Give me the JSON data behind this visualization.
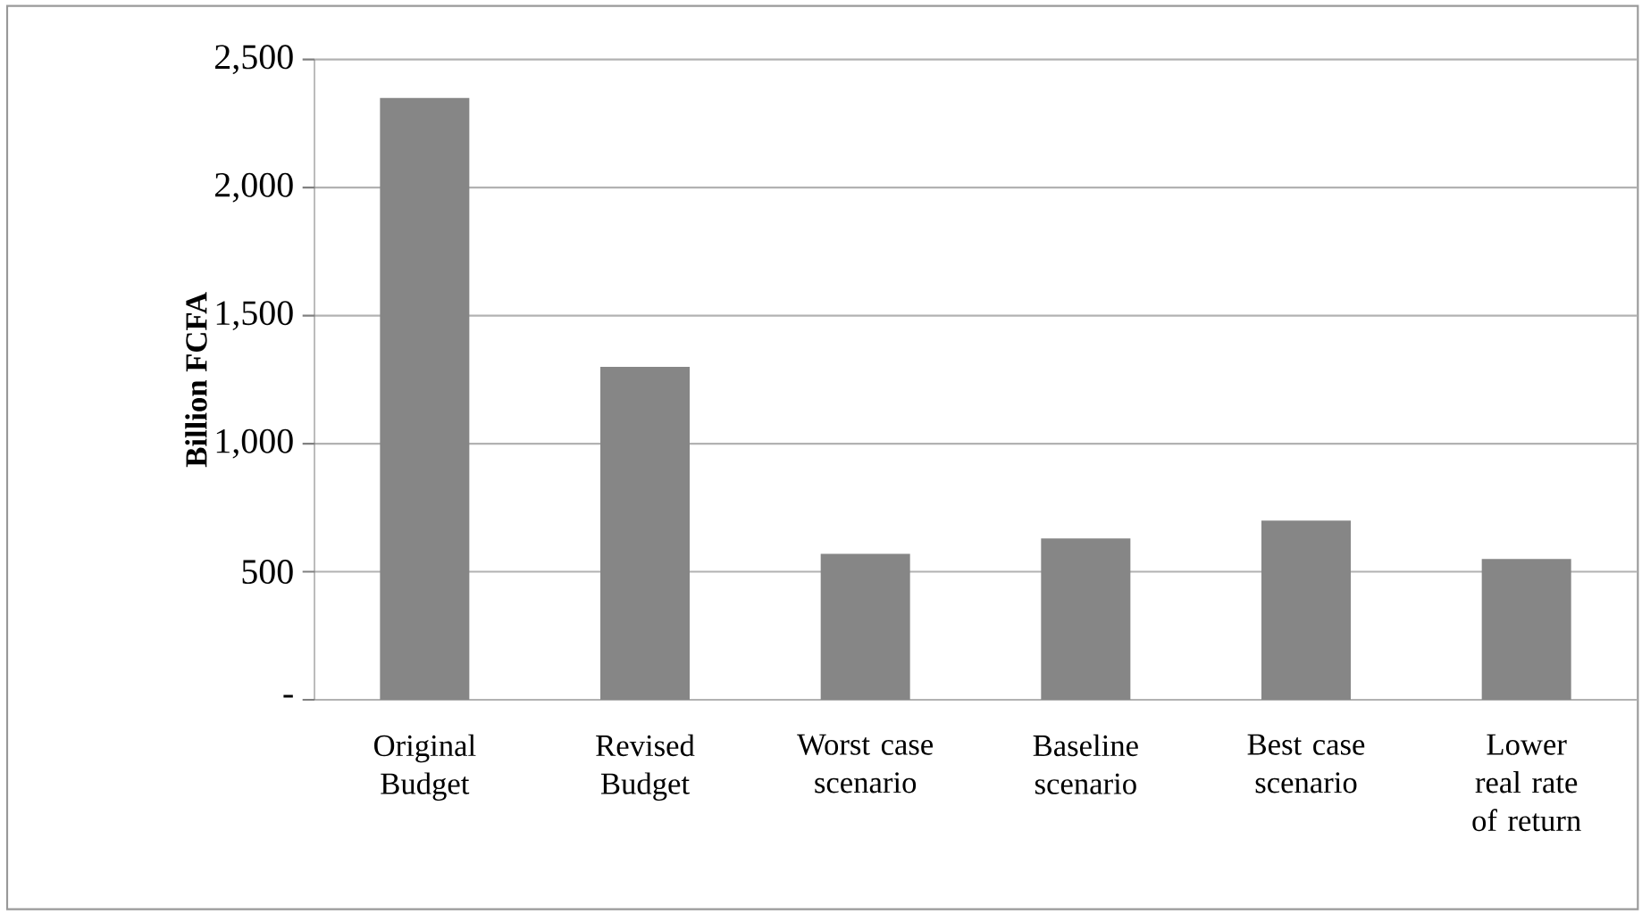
{
  "chart_data": {
    "type": "bar",
    "ylabel": "Billion FCFA",
    "categories": [
      "Original Budget",
      "Revised Budget",
      "Worst case scenario",
      "Baseline scenario",
      "Best case scenario",
      "Lower real rate of return"
    ],
    "values": [
      2350,
      1300,
      570,
      630,
      700,
      550
    ],
    "color": "#868686",
    "ylim": [
      0,
      2500
    ],
    "yticks": [
      {
        "value": 0,
        "label": "-"
      },
      500,
      {
        "value": 1000,
        "label": "1,000"
      },
      {
        "value": 1500,
        "label": "1,500"
      },
      {
        "value": 2000,
        "label": "2,000"
      },
      {
        "value": 2500,
        "label": "2,500"
      }
    ],
    "grid": "y"
  }
}
